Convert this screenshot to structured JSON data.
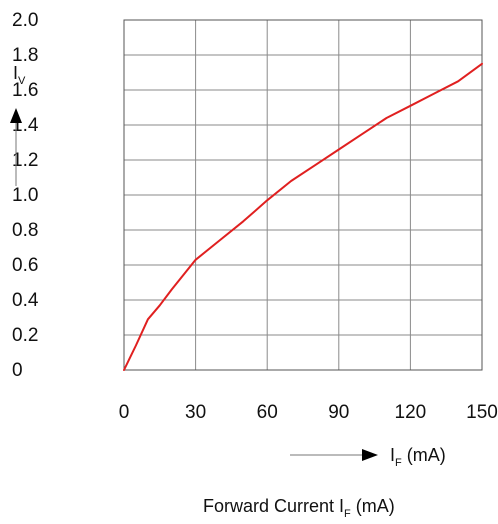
{
  "chart_data": {
    "type": "line",
    "ylabel_main": "I",
    "ylabel_sub": "V",
    "xunit_main": "I",
    "xunit_sub": "F",
    "xunit_tail": " (mA)",
    "title_main": "Forward Current I",
    "title_sub": "F",
    "title_tail": " (mA)",
    "xlim": [
      0,
      150
    ],
    "ylim": [
      0,
      2.0
    ],
    "x_ticks": [
      "0",
      "30",
      "60",
      "90",
      "120",
      "150"
    ],
    "y_ticks": [
      "0",
      "0.2",
      "0.4",
      "0.6",
      "0.8",
      "1.0",
      "1.2",
      "1.4",
      "1.6",
      "1.8",
      "2.0"
    ],
    "grid": true,
    "series": [
      {
        "color": "#e02020",
        "x": [
          0,
          5,
          10,
          15,
          20,
          30,
          40,
          50,
          60,
          70,
          80,
          90,
          100,
          110,
          120,
          130,
          140,
          150
        ],
        "y": [
          0,
          0.14,
          0.29,
          0.37,
          0.46,
          0.63,
          0.74,
          0.85,
          0.97,
          1.08,
          1.17,
          1.26,
          1.35,
          1.44,
          1.51,
          1.58,
          1.65,
          1.75
        ]
      }
    ]
  }
}
